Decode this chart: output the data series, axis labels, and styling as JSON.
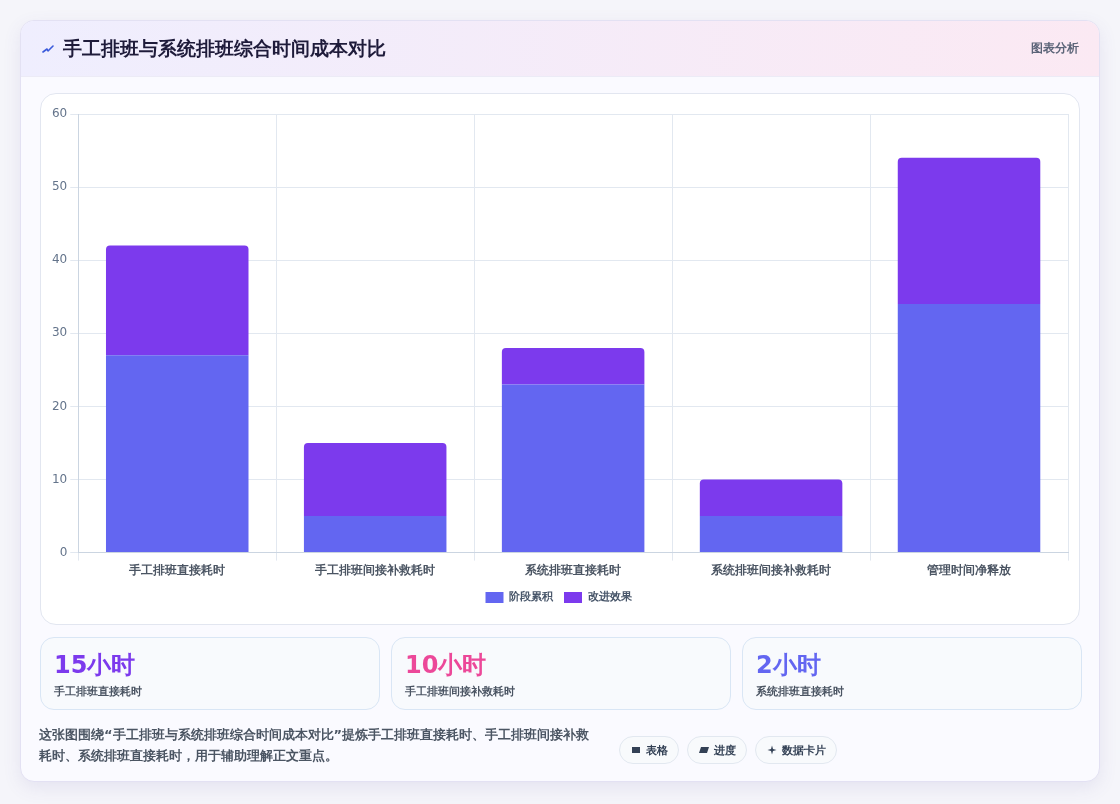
{
  "chart_data": {
    "type": "bar",
    "title": "手工排班与系统排班综合时间成本对比",
    "categories": [
      "手工排班直接耗时",
      "手工排班间接补救耗时",
      "系统排班直接耗时",
      "系统排班间接补救耗时",
      "管理时间净释放"
    ],
    "series": [
      {
        "name": "阶段累积",
        "color": "#6366f1",
        "values": [
          27,
          5,
          23,
          5,
          34
        ]
      },
      {
        "name": "改进效果",
        "color": "#7c3aed",
        "values": [
          15,
          10,
          5,
          5,
          20
        ]
      }
    ],
    "stacked": true,
    "ylim": [
      0,
      60
    ],
    "yticks": [
      0,
      10,
      20,
      30,
      40,
      50,
      60
    ],
    "grid": true,
    "legend": "bottom",
    "annotations": [
      "图表分析",
      "15小时",
      "手工排班直接耗时",
      "10小时",
      "手工排班间接补救耗时",
      "2小时",
      "系统排班直接耗时",
      "这张图围绕“手工排班与系统排班综合时间成本对比”提炼手工排班直接耗时、手工排班间接补救耗时、系统排班直接耗时，用于辅助理解正文重点。",
      "表格",
      "进度",
      "数据卡片"
    ]
  }
}
